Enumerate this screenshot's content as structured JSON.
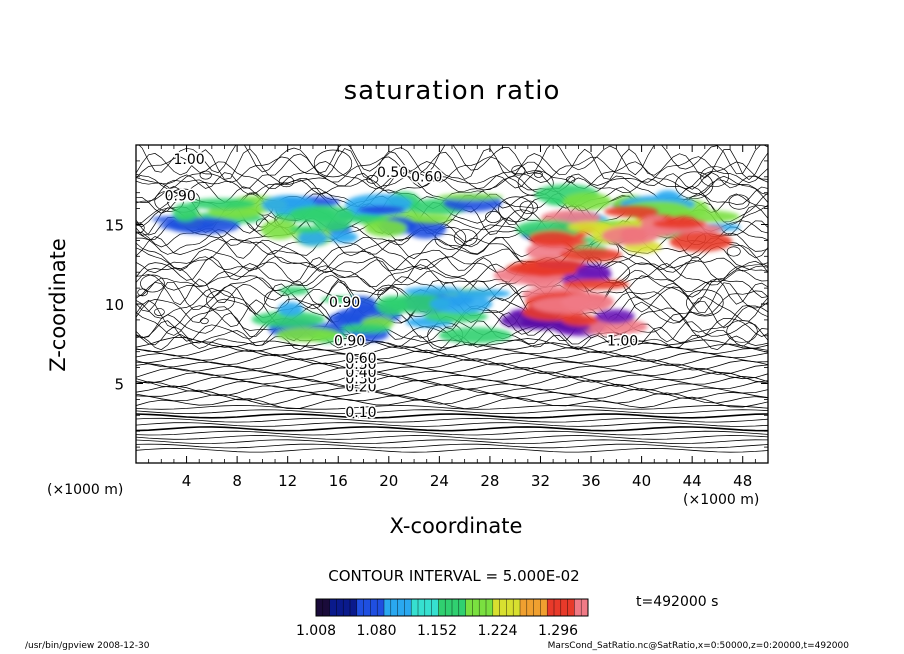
{
  "chart_data": {
    "type": "contour",
    "title": "saturation ratio",
    "xlabel": "X-coordinate",
    "ylabel": "Z-coordinate",
    "x_unit": "(×1000 m)",
    "xlim": [
      0,
      50
    ],
    "ylim": [
      0,
      20
    ],
    "x_ticks": [
      4,
      8,
      12,
      16,
      20,
      24,
      28,
      32,
      36,
      40,
      44,
      48
    ],
    "y_ticks": [
      5,
      10,
      15
    ],
    "contour_interval_text": "CONTOUR INTERVAL = 5.000E-02",
    "contour_labels": [
      {
        "text": "0.10",
        "x": 17.8,
        "z": 2.9
      },
      {
        "text": "0.20",
        "x": 17.8,
        "z": 4.5
      },
      {
        "text": "0.30",
        "x": 17.8,
        "z": 5.0
      },
      {
        "text": "0.40",
        "x": 17.8,
        "z": 5.4
      },
      {
        "text": "0.50",
        "x": 17.8,
        "z": 5.9
      },
      {
        "text": "0.60",
        "x": 17.8,
        "z": 6.3
      },
      {
        "text": "0.90",
        "x": 16.9,
        "z": 7.4
      },
      {
        "text": "0.90",
        "x": 16.5,
        "z": 9.8
      },
      {
        "text": "1.00",
        "x": 38.5,
        "z": 7.4
      },
      {
        "text": "0.50",
        "x": 20.3,
        "z": 18.0
      },
      {
        "text": "0.60",
        "x": 23.0,
        "z": 17.7
      },
      {
        "text": "1.00",
        "x": 4.2,
        "z": 18.8
      },
      {
        "text": "0.90",
        "x": 3.5,
        "z": 16.5
      }
    ],
    "shaded_regions": [
      {
        "level": "low",
        "x": [
          1,
          26
        ],
        "z": [
          14.5,
          16.5
        ]
      },
      {
        "level": "low",
        "x": [
          12,
          48
        ],
        "z": [
          14,
          17
        ]
      },
      {
        "level": "high",
        "x": [
          32,
          45
        ],
        "z": [
          13,
          16
        ]
      },
      {
        "level": "max",
        "x": [
          31,
          39
        ],
        "z": [
          8.5,
          12.5
        ]
      },
      {
        "level": "low",
        "x": [
          12,
          28
        ],
        "z": [
          8,
          11
        ]
      }
    ],
    "colorbar": {
      "ticks": [
        "1.008",
        "1.080",
        "1.152",
        "1.224",
        "1.296"
      ],
      "colors": [
        "#1a0b3a",
        "#0a1a8c",
        "#1f4fe0",
        "#2aa8f0",
        "#36e0d0",
        "#30d070",
        "#7ae040",
        "#d8e030",
        "#f0a030",
        "#e83a2a",
        "#f07a86"
      ]
    },
    "time_text": "t=492000 s",
    "grid": false,
    "legend": "colorbar bottom-center"
  },
  "footer": {
    "left": "/usr/bin/gpview   2008-12-30",
    "right": "MarsCond_SatRatio.nc@SatRatio,x=0:50000,z=0:20000,t=492000"
  }
}
